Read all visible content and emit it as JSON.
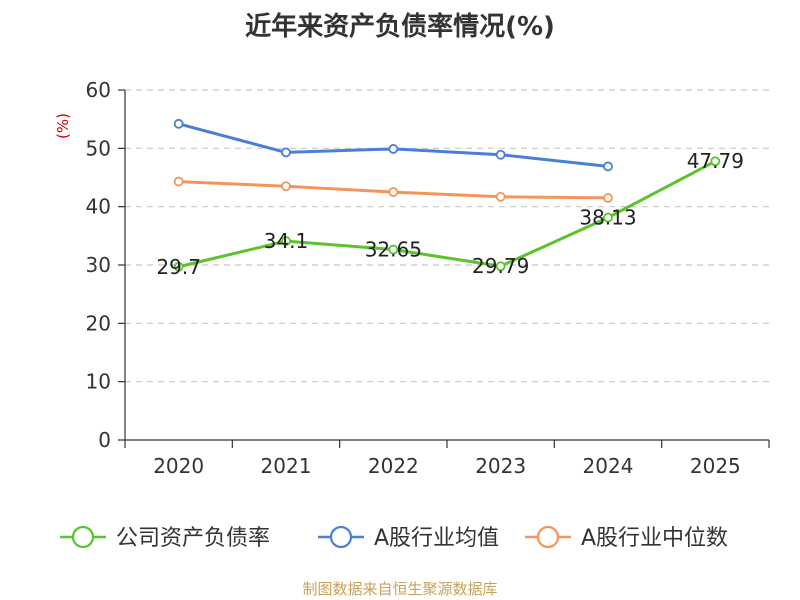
{
  "chart_data": {
    "type": "line",
    "title": "近年来资产负债率情况(%)",
    "ylabel": "(%)",
    "xlabel": "",
    "categories": [
      "2020",
      "2021",
      "2022",
      "2023",
      "2024",
      "2025"
    ],
    "ylim": [
      0,
      60
    ],
    "yticks": [
      0,
      10,
      20,
      30,
      40,
      50,
      60
    ],
    "grid": true,
    "legend_position": "bottom",
    "series": [
      {
        "name": "公司资产负债率",
        "color": "#5cc22d",
        "values": [
          29.7,
          34.1,
          32.65,
          29.79,
          38.13,
          47.79
        ],
        "labels": [
          "29.7",
          "34.1",
          "32.65",
          "29.79",
          "38.13",
          "47.79"
        ]
      },
      {
        "name": "A股行业均值",
        "color": "#4a7fd6",
        "values": [
          54.2,
          49.3,
          49.9,
          48.9,
          46.9,
          null
        ],
        "labels": []
      },
      {
        "name": "A股行业中位数",
        "color": "#f2955a",
        "values": [
          44.3,
          43.5,
          42.5,
          41.7,
          41.5,
          null
        ],
        "labels": []
      }
    ]
  },
  "source": "制图数据来自恒生聚源数据库"
}
